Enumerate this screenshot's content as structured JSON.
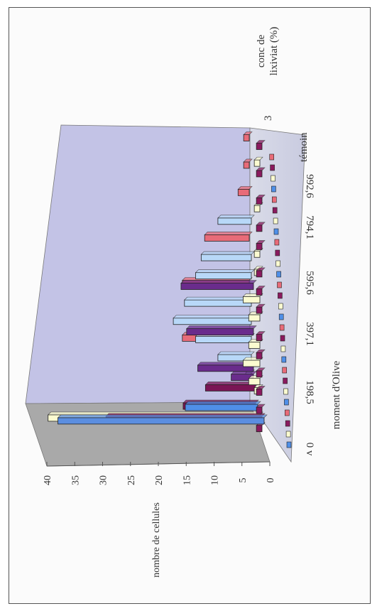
{
  "chart_data": {
    "type": "bar",
    "variant": "3d-column",
    "orientation_of_scan": "rotated 90 degrees counter-clockwise",
    "title": "",
    "xlabel": "moment d'Olive",
    "ylabel": "nombre de cellules",
    "zlabel": "conc de lixiviat (%)",
    "ylim": [
      0,
      40
    ],
    "yticks": [
      "0",
      "5",
      "10",
      "15",
      "20",
      "25",
      "30",
      "35",
      "40"
    ],
    "depth_ticks": [
      "3",
      "témoin"
    ],
    "x_tick_labels": [
      "0 v",
      "198,5",
      "397,1",
      "595,6",
      "794,1",
      "992,6",
      "témoin"
    ],
    "x": [
      0,
      1,
      2,
      3,
      4,
      5,
      6,
      7,
      8,
      9,
      10,
      11,
      12,
      13,
      14,
      15,
      16,
      17,
      18,
      19,
      20,
      21,
      22,
      23,
      24,
      25,
      26,
      27,
      28,
      29,
      30,
      31,
      32
    ],
    "grid": false,
    "legend": "none",
    "series": [
      {
        "color": "#5b8ee0",
        "values": [
          0,
          0,
          37,
          0,
          0,
          0,
          0,
          0,
          0,
          0,
          0,
          0,
          0,
          0,
          0,
          0,
          0,
          0,
          0,
          0,
          0,
          0,
          0,
          0,
          0,
          0,
          0,
          0,
          0,
          0,
          0,
          0,
          0
        ]
      },
      {
        "color": "#8a1a5e",
        "values": [
          0,
          1,
          28,
          1,
          0,
          1,
          0,
          1,
          0,
          1,
          0,
          1,
          0,
          0,
          1,
          0,
          1,
          0,
          1,
          0,
          0,
          1,
          0,
          1,
          0,
          0,
          1,
          0,
          0,
          1,
          0,
          0,
          1
        ]
      },
      {
        "color": "#fbfbd0",
        "values": [
          0,
          0,
          38,
          0,
          0,
          1,
          2,
          0,
          3,
          0,
          2,
          0,
          0,
          2,
          0,
          3,
          0,
          0,
          1,
          0,
          1,
          0,
          0,
          0,
          0,
          1,
          0,
          0,
          0,
          0,
          1,
          0,
          0
        ]
      },
      {
        "color": "#4f8fe8",
        "values": [
          0,
          0,
          0,
          13,
          0,
          0,
          0,
          0,
          0,
          0,
          0,
          0,
          0,
          0,
          0,
          0,
          0,
          0,
          0,
          0,
          0,
          0,
          0,
          0,
          0,
          0,
          0,
          0,
          0,
          0,
          0,
          0,
          0
        ]
      },
      {
        "color": "#7a1555",
        "values": [
          0,
          0,
          0,
          13,
          0,
          9,
          0,
          0,
          0,
          0,
          0,
          0,
          0,
          0,
          0,
          0,
          0,
          0,
          0,
          0,
          0,
          0,
          0,
          0,
          0,
          0,
          0,
          0,
          0,
          0,
          0,
          0,
          0
        ]
      },
      {
        "color": "#6a2c8c",
        "values": [
          0,
          0,
          0,
          0,
          0,
          0,
          4,
          10,
          0,
          0,
          0,
          12,
          0,
          0,
          0,
          0,
          13,
          0,
          0,
          0,
          0,
          0,
          0,
          0,
          0,
          0,
          0,
          0,
          0,
          0,
          0,
          0,
          0
        ]
      },
      {
        "color": "#b8d8f8",
        "values": [
          0,
          0,
          0,
          0,
          0,
          0,
          1,
          0,
          6,
          0,
          10,
          0,
          14,
          0,
          12,
          0,
          0,
          10,
          0,
          9,
          0,
          0,
          0,
          6,
          0,
          0,
          0,
          0,
          0,
          0,
          0,
          0,
          0
        ]
      },
      {
        "color": "#e86b78",
        "values": [
          0,
          0,
          0,
          0,
          0,
          0,
          0,
          0,
          0,
          0,
          12,
          0,
          0,
          0,
          0,
          0,
          12,
          0,
          0,
          0,
          0,
          8,
          0,
          0,
          0,
          0,
          2,
          0,
          0,
          1,
          0,
          0,
          1
        ]
      }
    ]
  },
  "axis_labels": {
    "y": "nombre de cellules",
    "x": "moment d'Olive",
    "z": "conc de lixiviat (%)",
    "z_line1": "conc de",
    "z_line2": "lixiviat (%)"
  }
}
